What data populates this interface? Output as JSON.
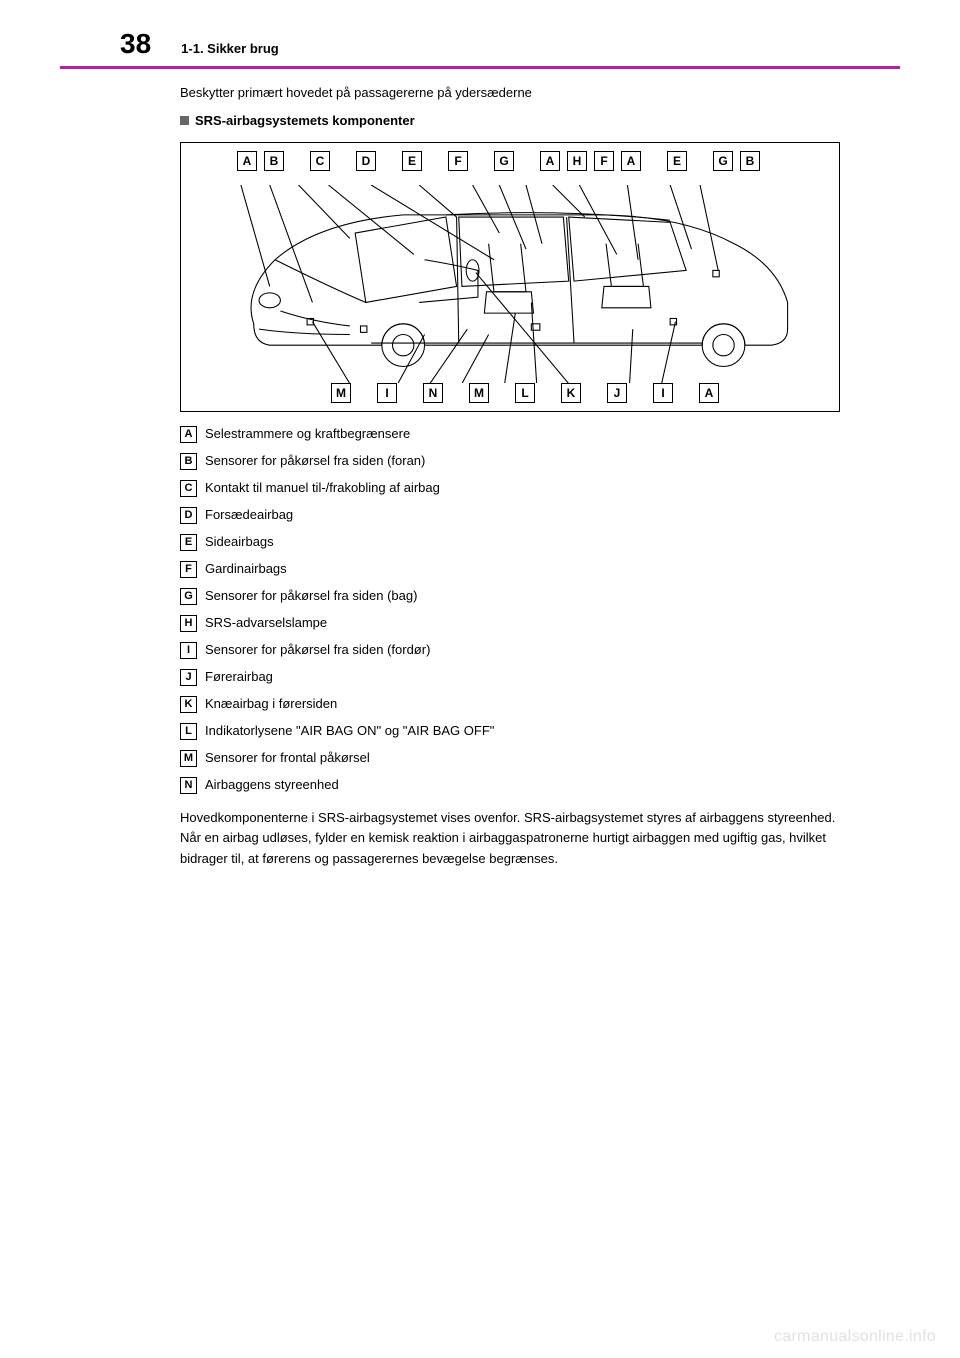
{
  "header": {
    "page_number": "38",
    "section": "1-1. Sikker brug"
  },
  "caption": "Beskytter primært hovedet på passagererne på ydersæderne",
  "subheading": "SRS-airbagsystemets komponenter",
  "diagram": {
    "top_labels": [
      "A",
      "B",
      "C",
      "D",
      "E",
      "F",
      "G",
      "A",
      "H",
      "F",
      "A",
      "E",
      "G",
      "B"
    ],
    "bottom_labels": [
      "M",
      "I",
      "N",
      "M",
      "L",
      "K",
      "J",
      "I",
      "A"
    ]
  },
  "legend": [
    {
      "key": "A",
      "text": "Selestrammere og kraftbegrænsere"
    },
    {
      "key": "B",
      "text": "Sensorer for påkørsel fra siden (foran)"
    },
    {
      "key": "C",
      "text": "Kontakt til manuel til-/frakobling af airbag"
    },
    {
      "key": "D",
      "text": "Forsædeairbag"
    },
    {
      "key": "E",
      "text": "Sideairbags"
    },
    {
      "key": "F",
      "text": "Gardinairbags"
    },
    {
      "key": "G",
      "text": "Sensorer for påkørsel fra siden (bag)"
    },
    {
      "key": "H",
      "text": "SRS-advarselslampe"
    },
    {
      "key": "I",
      "text": "Sensorer for påkørsel fra siden (fordør)"
    },
    {
      "key": "J",
      "text": "Førerairbag"
    },
    {
      "key": "K",
      "text": "Knæairbag i førersiden"
    },
    {
      "key": "L",
      "text": "Indikatorlysene \"AIR BAG ON\" og \"AIR BAG OFF\""
    },
    {
      "key": "M",
      "text": "Sensorer for frontal påkørsel"
    },
    {
      "key": "N",
      "text": "Airbaggens styreenhed"
    }
  ],
  "body_text": "Hovedkomponenterne i SRS-airbagsystemet vises ovenfor. SRS-airbagsystemet styres af airbaggens styreenhed. Når en airbag udløses, fylder en kemisk reaktion i airbaggaspatronerne hurtigt airbaggen med ugiftig gas, hvilket bidrager til, at førerens og passagerernes bevægelse begrænses.",
  "watermark": "carmanualsonline.info",
  "colors": {
    "accent": "#b91fa3",
    "text": "#000000",
    "bullet": "#666666",
    "watermark": "#e2e2e2"
  }
}
